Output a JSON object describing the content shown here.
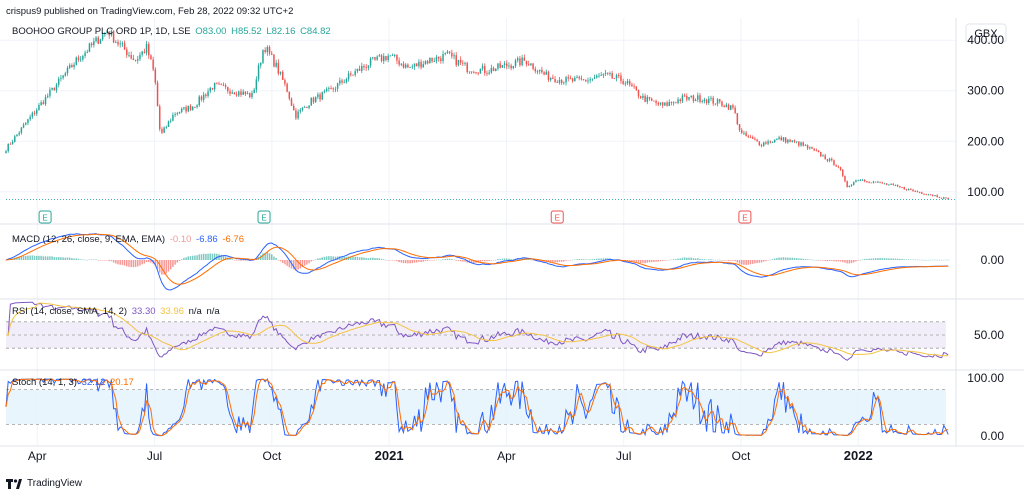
{
  "header": {
    "publisher_line": "crispus9 published on TradingView.com, Feb 28, 2022 09:32 UTC+2"
  },
  "footer": {
    "brand": "TradingView"
  },
  "chart_data": [
    {
      "type": "candlestick",
      "symbol_line": "BOOHOO GROUP PLC ORD 1P, 1D, LSE",
      "ohlc": {
        "O": "O83.00",
        "H": "H85.52",
        "L": "L82.16",
        "C": "C84.82"
      },
      "currency": "GBX",
      "ylim": [
        60,
        440
      ],
      "y_ticks": [
        "400.00",
        "300.00",
        "200.00",
        "100.00"
      ],
      "y_tick_values": [
        400,
        300,
        200,
        100
      ],
      "x_tick_labels": [
        "Apr",
        "Jul",
        "Oct",
        "2021",
        "Apr",
        "Jul",
        "Oct",
        "2022"
      ],
      "x_tick_months": [
        3,
        6,
        9,
        12,
        15,
        18,
        21,
        24
      ],
      "x_range_months": [
        2.2,
        26.5
      ],
      "last_close": 84.82,
      "price_path": [
        [
          2.2,
          185
        ],
        [
          3.0,
          265
        ],
        [
          4.0,
          360
        ],
        [
          4.8,
          420
        ],
        [
          5.0,
          400
        ],
        [
          5.5,
          360
        ],
        [
          5.8,
          385
        ],
        [
          6.0,
          330
        ],
        [
          6.15,
          210
        ],
        [
          6.5,
          255
        ],
        [
          7.0,
          270
        ],
        [
          7.5,
          310
        ],
        [
          8.0,
          300
        ],
        [
          8.5,
          290
        ],
        [
          8.8,
          390
        ],
        [
          9.1,
          350
        ],
        [
          9.4,
          300
        ],
        [
          9.6,
          250
        ],
        [
          10.0,
          280
        ],
        [
          10.5,
          300
        ],
        [
          11.0,
          330
        ],
        [
          11.5,
          355
        ],
        [
          12.0,
          370
        ],
        [
          12.5,
          345
        ],
        [
          13.0,
          360
        ],
        [
          13.5,
          370
        ],
        [
          14.0,
          345
        ],
        [
          14.5,
          340
        ],
        [
          15.0,
          350
        ],
        [
          15.5,
          360
        ],
        [
          16.0,
          330
        ],
        [
          16.5,
          320
        ],
        [
          17.0,
          320
        ],
        [
          17.5,
          330
        ],
        [
          18.0,
          320
        ],
        [
          18.5,
          285
        ],
        [
          19.0,
          270
        ],
        [
          19.5,
          285
        ],
        [
          20.0,
          285
        ],
        [
          20.5,
          275
        ],
        [
          20.8,
          265
        ],
        [
          21.0,
          215
        ],
        [
          21.5,
          195
        ],
        [
          22.0,
          205
        ],
        [
          22.5,
          195
        ],
        [
          23.0,
          175
        ],
        [
          23.5,
          150
        ],
        [
          23.7,
          110
        ],
        [
          24.0,
          125
        ],
        [
          24.5,
          118
        ],
        [
          25.0,
          110
        ],
        [
          25.5,
          100
        ],
        [
          26.0,
          92
        ],
        [
          26.3,
          84.82
        ]
      ],
      "earnings_markers": [
        {
          "label": "E",
          "month": 3.2,
          "kind": "positive"
        },
        {
          "label": "E",
          "month": 8.8,
          "kind": "positive"
        },
        {
          "label": "E",
          "month": 16.3,
          "kind": "negative"
        },
        {
          "label": "E",
          "month": 21.1,
          "kind": "negative"
        }
      ]
    },
    {
      "type": "line",
      "indicator": "MACD",
      "legend_title": "MACD (12, 26, close, 9, EMA, EMA)",
      "values": {
        "histogram": "-0.10",
        "macd": "-6.86",
        "signal": "-6.76"
      },
      "y_ticks": [
        "0.00"
      ],
      "series": [
        {
          "name": "MACD"
        },
        {
          "name": "Signal"
        },
        {
          "name": "Histogram"
        }
      ]
    },
    {
      "type": "line",
      "indicator": "RSI",
      "legend_title": "RSI (14, close, SMA, 14, 2)",
      "values": {
        "rsi": "33.30",
        "rsi_ma": "33.96",
        "na1": "n/a",
        "na2": "n/a"
      },
      "y_ticks": [
        "50.00"
      ],
      "bands": [
        30,
        50,
        70
      ]
    },
    {
      "type": "line",
      "indicator": "Stoch",
      "legend_title": "Stoch (14, 1, 3)",
      "values": {
        "k": "32.12",
        "d": "20.17"
      },
      "y_ticks": [
        "100.00",
        "0.00"
      ],
      "bands": [
        20,
        80
      ]
    }
  ],
  "colors": {
    "up": "#26a69a",
    "down": "#ef5350",
    "macd": "#2962ff",
    "signal": "#ff6d00",
    "rsi": "#7e57c2",
    "rsi_ma": "#f5c342",
    "stoch_k": "#2962ff",
    "stoch_d": "#ff6d00",
    "grid": "#f0f3fa",
    "axis_text": "#131722",
    "band_rsi": "#ede7f6",
    "band_stoch": "#e3f2fd"
  }
}
